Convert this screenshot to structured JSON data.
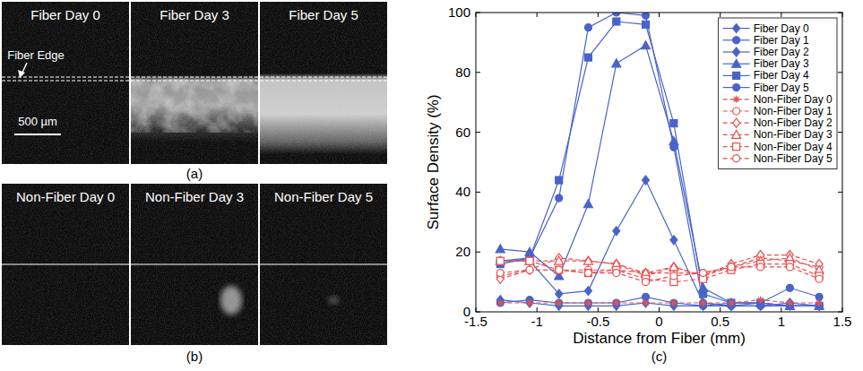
{
  "figure": {
    "a": {
      "label": "(a)",
      "panels": [
        {
          "title": "Fiber Day 0"
        },
        {
          "title": "Fiber Day 3"
        },
        {
          "title": "Fiber Day 5"
        }
      ],
      "annotation": "Fiber Edge",
      "scale_bar": "500 µm"
    },
    "b": {
      "label": "(b)",
      "panels": [
        {
          "title": "Non-Fiber Day 0"
        },
        {
          "title": "Non-Fiber Day 3"
        },
        {
          "title": "Non-Fiber Day 5"
        }
      ]
    }
  },
  "chart_data": {
    "type": "line",
    "panel_label": "(c)",
    "x_label": "Distance from Fiber (mm)",
    "y_label": "Surface Density (%)",
    "x": [
      -1.3,
      -1.06,
      -0.82,
      -0.58,
      -0.35,
      -0.11,
      0.12,
      0.36,
      0.59,
      0.83,
      1.07,
      1.31
    ],
    "xlim": [
      -1.5,
      1.5
    ],
    "xticks": [
      -1.5,
      -1,
      -0.5,
      0,
      0.5,
      1,
      1.5
    ],
    "ylim": [
      0,
      100
    ],
    "yticks": [
      0,
      20,
      40,
      60,
      80,
      100
    ],
    "grid": false,
    "legend": "upper right",
    "series": [
      {
        "name": "Fiber Day 0",
        "color": "#4a63c8",
        "marker": "diamond",
        "line_style": "solid",
        "values": [
          4,
          3,
          2,
          2,
          2,
          3,
          2,
          2,
          2,
          2,
          3,
          2
        ]
      },
      {
        "name": "Fiber Day 1",
        "color": "#4a63c8",
        "marker": "circle",
        "line_style": "solid",
        "values": [
          3,
          4,
          3,
          3,
          3,
          5,
          3,
          2,
          3,
          3,
          8,
          5
        ]
      },
      {
        "name": "Fiber Day 2",
        "color": "#4a63c8",
        "marker": "diamond",
        "line_style": "solid",
        "values": [
          17,
          17,
          6,
          7,
          27,
          44,
          24,
          3,
          2,
          3,
          2,
          2
        ]
      },
      {
        "name": "Fiber Day 3",
        "color": "#4a63c8",
        "marker": "triangle",
        "line_style": "solid",
        "values": [
          21,
          20,
          12,
          36,
          83,
          89,
          57,
          8,
          3,
          3,
          2,
          2
        ]
      },
      {
        "name": "Fiber Day 4",
        "color": "#4a63c8",
        "marker": "square",
        "line_style": "solid",
        "values": [
          16,
          18,
          44,
          85,
          97,
          96,
          63,
          6,
          3,
          3,
          2,
          2
        ]
      },
      {
        "name": "Fiber Day 5",
        "color": "#4a63c8",
        "marker": "circle",
        "line_style": "solid",
        "values": [
          17,
          18,
          38,
          95,
          100,
          99,
          55,
          3,
          2,
          2,
          2,
          2
        ]
      },
      {
        "name": "Non-Fiber Day 0",
        "color": "#e8504f",
        "marker": "star",
        "line_style": "dashed",
        "values": [
          3,
          3,
          3,
          3,
          3,
          3,
          3,
          3,
          3,
          4,
          3,
          3
        ]
      },
      {
        "name": "Non-Fiber Day 1",
        "color": "#e8504f",
        "marker": "circle",
        "line_style": "dashed",
        "values": [
          12,
          14,
          14,
          14,
          14,
          13,
          13,
          13,
          15,
          18,
          17,
          15
        ]
      },
      {
        "name": "Non-Fiber Day 2",
        "color": "#e8504f",
        "marker": "diamond",
        "line_style": "dashed",
        "values": [
          11,
          14,
          18,
          17,
          16,
          12,
          15,
          12,
          16,
          19,
          19,
          16
        ]
      },
      {
        "name": "Non-Fiber Day 3",
        "color": "#e8504f",
        "marker": "triangle",
        "line_style": "dashed",
        "values": [
          17,
          17,
          17,
          17,
          16,
          13,
          15,
          12,
          15,
          17,
          18,
          14
        ]
      },
      {
        "name": "Non-Fiber Day 4",
        "color": "#e8504f",
        "marker": "square",
        "line_style": "dashed",
        "values": [
          17,
          17,
          14,
          13,
          14,
          11,
          10,
          11,
          14,
          16,
          16,
          12
        ]
      },
      {
        "name": "Non-Fiber Day 5",
        "color": "#e8504f",
        "marker": "circle",
        "line_style": "dashed",
        "values": [
          13,
          14,
          14,
          13,
          13,
          10,
          12,
          13,
          15,
          15,
          15,
          11
        ]
      }
    ]
  }
}
